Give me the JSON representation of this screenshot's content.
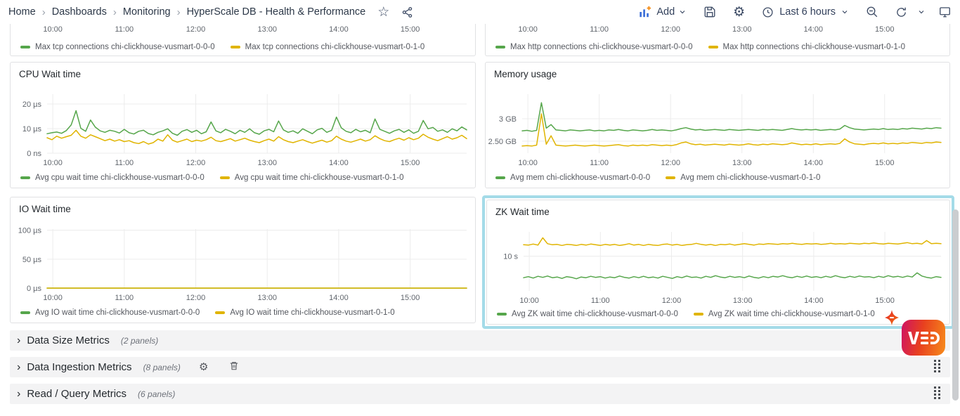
{
  "breadcrumb": {
    "items": [
      "Home",
      "Dashboards",
      "Monitoring",
      "HyperScale DB - Health & Performance"
    ],
    "separator": "›"
  },
  "icons": {
    "star": "☆",
    "gear": "⚙"
  },
  "ui": {
    "row_chevron": "›"
  },
  "toolbar": {
    "add_label": "Add",
    "time_range_label": "Last 6 hours"
  },
  "rows": [
    {
      "title": "Data Size Metrics",
      "count": "(2 panels)"
    },
    {
      "title": "Data Ingestion Metrics",
      "count": "(8 panels)"
    },
    {
      "title": "Read / Query Metrics",
      "count": "(6 panels)"
    }
  ],
  "logo": {
    "text": "VED"
  },
  "colors": {
    "series_green": "#56a64b",
    "series_yellow": "#e0b400",
    "grid": "#ececec",
    "axis_text": "#61666d",
    "highlight": "#a4dbe8"
  },
  "chart_data": [
    {
      "id": "tcp",
      "type": "line",
      "clipped": true,
      "title": "",
      "xticks": [
        "10:00",
        "11:00",
        "12:00",
        "13:00",
        "14:00",
        "15:00"
      ],
      "x_axis_hours": [
        -0.08,
        5.79
      ],
      "x_tick_hours": [
        0,
        1,
        2,
        3,
        4,
        5
      ],
      "ylim": null,
      "yticks": [],
      "series": [
        {
          "name": "Max tcp connections chi-clickhouse-vusmart-0-0-0",
          "color": "#56a64b",
          "values": []
        },
        {
          "name": "Max tcp connections chi-clickhouse-vusmart-0-1-0",
          "color": "#e0b400",
          "values": []
        }
      ]
    },
    {
      "id": "http",
      "type": "line",
      "clipped": true,
      "title": "",
      "xticks": [
        "10:00",
        "11:00",
        "12:00",
        "13:00",
        "14:00",
        "15:00"
      ],
      "x_axis_hours": [
        -0.08,
        5.79
      ],
      "x_tick_hours": [
        0,
        1,
        2,
        3,
        4,
        5
      ],
      "ylim": null,
      "yticks": [],
      "series": [
        {
          "name": "Max http connections chi-clickhouse-vusmart-0-0-0",
          "color": "#56a64b",
          "values": []
        },
        {
          "name": "Max http connections chi-clickhouse-vusmart-0-1-0",
          "color": "#e0b400",
          "values": []
        }
      ]
    },
    {
      "id": "cpu",
      "type": "line",
      "clipped": false,
      "title": "CPU Wait time",
      "xticks": [
        "10:00",
        "11:00",
        "12:00",
        "13:00",
        "14:00",
        "15:00"
      ],
      "x_axis_hours": [
        -0.08,
        5.79
      ],
      "x_tick_hours": [
        0,
        1,
        2,
        3,
        4,
        5
      ],
      "ylim": [
        0,
        24
      ],
      "yticks": [
        {
          "v": 0,
          "label": "0 ns"
        },
        {
          "v": 10,
          "label": "10 µs"
        },
        {
          "v": 20,
          "label": "20 µs"
        }
      ],
      "series": [
        {
          "name": "Avg cpu wait time chi-clickhouse-vusmart-0-0-0",
          "color": "#56a64b",
          "values": [
            7.9,
            8.3,
            8.6,
            8.1,
            9.2,
            11.5,
            17.3,
            10.1,
            8.9,
            13.5,
            10.6,
            9.1,
            8.5,
            9.3,
            8.9,
            8.2,
            9.7,
            8.3,
            7.8,
            8.9,
            9.3,
            8.0,
            7.5,
            8.5,
            9.1,
            9.9,
            8.1,
            7.3,
            8.9,
            9.6,
            8.5,
            9.3,
            7.9,
            8.7,
            12.7,
            9.1,
            8.3,
            9.7,
            8.9,
            7.9,
            9.3,
            8.5,
            9.9,
            8.3,
            7.7,
            9.1,
            9.7,
            8.7,
            13.1,
            9.5,
            8.5,
            9.1,
            8.1,
            9.9,
            8.9,
            7.9,
            9.5,
            10.1,
            8.5,
            9.3,
            14.7,
            10.3,
            8.9,
            8.3,
            9.7,
            8.7,
            9.3,
            8.3,
            13.9,
            9.7,
            8.9,
            8.1,
            9.1,
            9.7,
            8.5,
            9.5,
            8.1,
            8.9,
            13.3,
            9.9,
            10.5,
            8.9,
            9.5,
            8.5,
            9.9,
            9.1,
            10.7,
            9.5
          ]
        },
        {
          "name": "Avg cpu wait time chi-clickhouse-vusmart-0-1-0",
          "color": "#e0b400",
          "values": [
            6.3,
            5.5,
            6.9,
            6.1,
            6.7,
            7.3,
            9.3,
            6.9,
            6.1,
            7.5,
            6.7,
            5.9,
            5.1,
            5.7,
            4.9,
            5.5,
            4.7,
            5.1,
            4.3,
            3.9,
            4.7,
            3.7,
            4.3,
            5.7,
            4.9,
            7.5,
            5.3,
            4.5,
            5.1,
            5.7,
            4.7,
            5.3,
            4.9,
            5.5,
            6.5,
            5.1,
            4.7,
            5.3,
            5.9,
            4.9,
            5.5,
            6.1,
            5.3,
            4.7,
            4.3,
            5.1,
            5.7,
            4.9,
            6.7,
            5.5,
            4.7,
            4.3,
            4.9,
            5.5,
            4.7,
            4.1,
            4.7,
            5.3,
            4.5,
            5.1,
            6.9,
            5.7,
            4.9,
            4.5,
            5.1,
            5.7,
            4.9,
            5.5,
            7.1,
            5.9,
            5.1,
            4.7,
            5.5,
            6.1,
            5.3,
            6.3,
            5.5,
            6.1,
            7.7,
            6.5,
            5.7,
            5.1,
            5.9,
            6.7,
            5.7,
            6.3,
            7.3,
            5.9
          ]
        }
      ]
    },
    {
      "id": "mem",
      "type": "line",
      "clipped": false,
      "title": "Memory usage",
      "xticks": [
        "10:00",
        "11:00",
        "12:00",
        "13:00",
        "14:00",
        "15:00"
      ],
      "x_axis_hours": [
        -0.08,
        5.79
      ],
      "x_tick_hours": [
        0,
        1,
        2,
        3,
        4,
        5
      ],
      "ylim": [
        2.23,
        3.55
      ],
      "yticks": [
        {
          "v": 2.5,
          "label": "2.50 GB"
        },
        {
          "v": 3,
          "label": "3 GB"
        }
      ],
      "series": [
        {
          "name": "Avg mem chi-clickhouse-vusmart-0-0-0",
          "color": "#56a64b",
          "values": [
            2.73,
            2.74,
            2.72,
            2.74,
            3.36,
            2.79,
            2.87,
            2.75,
            2.74,
            2.73,
            2.75,
            2.74,
            2.73,
            2.74,
            2.75,
            2.73,
            2.74,
            2.73,
            2.75,
            2.74,
            2.76,
            2.74,
            2.73,
            2.75,
            2.74,
            2.73,
            2.74,
            2.76,
            2.74,
            2.75,
            2.74,
            2.73,
            2.75,
            2.78,
            2.8,
            2.77,
            2.75,
            2.76,
            2.74,
            2.75,
            2.76,
            2.75,
            2.74,
            2.76,
            2.75,
            2.74,
            2.75,
            2.76,
            2.75,
            2.74,
            2.76,
            2.75,
            2.76,
            2.75,
            2.74,
            2.76,
            2.78,
            2.76,
            2.75,
            2.76,
            2.75,
            2.76,
            2.74,
            2.75,
            2.76,
            2.75,
            2.77,
            2.85,
            2.8,
            2.77,
            2.76,
            2.75,
            2.76,
            2.77,
            2.76,
            2.78,
            2.76,
            2.77,
            2.76,
            2.78,
            2.77,
            2.79,
            2.78,
            2.77,
            2.79,
            2.78,
            2.8,
            2.79
          ]
        },
        {
          "name": "Avg mem chi-clickhouse-vusmart-0-1-0",
          "color": "#e0b400",
          "values": [
            2.39,
            2.4,
            2.39,
            2.41,
            3.11,
            2.43,
            2.62,
            2.41,
            2.4,
            2.39,
            2.4,
            2.41,
            2.4,
            2.39,
            2.4,
            2.41,
            2.4,
            2.39,
            2.4,
            2.41,
            2.42,
            2.4,
            2.39,
            2.41,
            2.4,
            2.41,
            2.4,
            2.42,
            2.41,
            2.4,
            2.41,
            2.4,
            2.42,
            2.46,
            2.48,
            2.44,
            2.42,
            2.43,
            2.41,
            2.42,
            2.43,
            2.42,
            2.41,
            2.43,
            2.42,
            2.41,
            2.42,
            2.44,
            2.42,
            2.41,
            2.43,
            2.42,
            2.44,
            2.43,
            2.42,
            2.43,
            2.46,
            2.44,
            2.42,
            2.43,
            2.42,
            2.44,
            2.42,
            2.43,
            2.44,
            2.43,
            2.45,
            2.55,
            2.48,
            2.44,
            2.43,
            2.42,
            2.44,
            2.45,
            2.44,
            2.46,
            2.44,
            2.45,
            2.44,
            2.46,
            2.45,
            2.47,
            2.46,
            2.45,
            2.47,
            2.46,
            2.48,
            2.47
          ]
        }
      ]
    },
    {
      "id": "io",
      "type": "line",
      "clipped": false,
      "title": "IO Wait time",
      "xticks": [
        "10:00",
        "11:00",
        "12:00",
        "13:00",
        "14:00",
        "15:00"
      ],
      "x_axis_hours": [
        -0.08,
        5.79
      ],
      "x_tick_hours": [
        0,
        1,
        2,
        3,
        4,
        5
      ],
      "ylim": [
        0,
        102
      ],
      "yticks": [
        {
          "v": 0,
          "label": "0 µs"
        },
        {
          "v": 50,
          "label": "50 µs"
        },
        {
          "v": 100,
          "label": "100 µs"
        }
      ],
      "series": [
        {
          "name": "Avg IO wait time chi-clickhouse-vusmart-0-0-0",
          "color": "#56a64b",
          "values": [
            0,
            0
          ]
        },
        {
          "name": "Avg IO wait time chi-clickhouse-vusmart-0-1-0",
          "color": "#e0b400",
          "values": [
            0,
            0
          ]
        }
      ]
    },
    {
      "id": "zk",
      "type": "line",
      "clipped": false,
      "title": "ZK Wait time",
      "xticks": [
        "10:00",
        "11:00",
        "12:00",
        "13:00",
        "14:00",
        "15:00"
      ],
      "x_axis_hours": [
        -0.08,
        5.79
      ],
      "x_tick_hours": [
        0,
        1,
        2,
        3,
        4,
        5
      ],
      "ylim": [
        0,
        17
      ],
      "yticks": [
        {
          "v": 10,
          "label": "10 s"
        }
      ],
      "series": [
        {
          "name": "Avg ZK wait time chi-clickhouse-vusmart-0-0-0",
          "color": "#56a64b",
          "values": [
            3.8,
            4.1,
            3.7,
            4.2,
            3.9,
            4.3,
            3.8,
            4.0,
            3.6,
            4.1,
            3.9,
            3.5,
            4.0,
            3.8,
            4.2,
            3.9,
            4.1,
            3.7,
            4.0,
            3.8,
            4.3,
            3.9,
            3.7,
            4.1,
            3.8,
            4.2,
            3.8,
            4.0,
            3.7,
            4.2,
            3.9,
            3.6,
            4.1,
            3.8,
            4.3,
            3.9,
            4.0,
            3.7,
            4.2,
            3.9,
            4.4,
            4.0,
            3.8,
            4.2,
            3.9,
            4.1,
            3.8,
            4.3,
            3.9,
            3.7,
            4.1,
            3.8,
            4.2,
            4.0,
            4.4,
            4.0,
            3.8,
            4.2,
            3.9,
            4.3,
            3.9,
            4.1,
            3.8,
            4.2,
            3.9,
            4.4,
            4.0,
            3.8,
            4.2,
            3.9,
            4.3,
            4.0,
            4.1,
            3.8,
            4.2,
            3.9,
            4.4,
            4.0,
            4.2,
            3.9,
            4.3,
            4.0,
            5.2,
            4.3,
            3.9,
            3.7,
            4.1,
            3.9
          ]
        },
        {
          "name": "Avg ZK wait time chi-clickhouse-vusmart-0-1-0",
          "color": "#e0b400",
          "values": [
            13.3,
            13.2,
            13.5,
            13.2,
            15.3,
            13.6,
            13.3,
            13.4,
            13.1,
            13.4,
            13.3,
            13.1,
            13.4,
            13.2,
            13.5,
            13.3,
            13.1,
            13.4,
            13.2,
            13.4,
            13.1,
            13.3,
            13.6,
            13.2,
            13.4,
            13.1,
            13.4,
            13.2,
            13.1,
            13.4,
            13.5,
            13.2,
            13.4,
            13.1,
            13.3,
            13.4,
            13.7,
            13.4,
            13.2,
            13.4,
            13.1,
            13.4,
            13.3,
            13.5,
            13.2,
            13.4,
            13.6,
            13.4,
            13.2,
            13.5,
            13.4,
            13.6,
            13.5,
            13.4,
            13.6,
            13.5,
            13.7,
            13.5,
            13.4,
            13.6,
            13.5,
            13.6,
            13.4,
            13.5,
            13.7,
            13.5,
            13.6,
            13.5,
            13.7,
            13.6,
            13.5,
            13.7,
            13.6,
            13.8,
            13.6,
            13.5,
            13.7,
            13.6,
            13.5,
            13.7,
            13.9,
            13.6,
            13.7,
            13.5,
            14.5,
            13.6,
            13.7,
            13.6
          ]
        }
      ]
    }
  ]
}
